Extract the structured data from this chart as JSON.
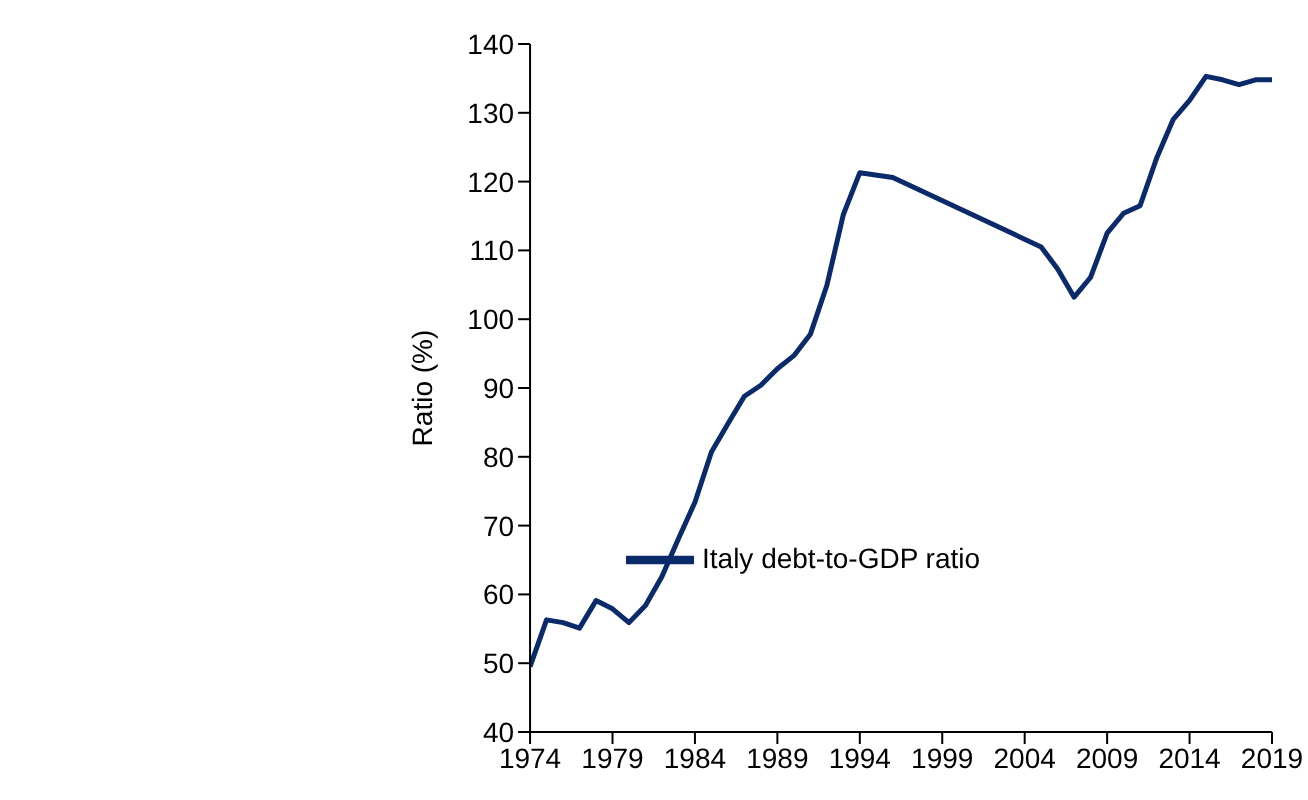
{
  "chart_data": {
    "type": "line",
    "ylabel": "Ratio (%)",
    "x": [
      1974,
      1975,
      1976,
      1977,
      1978,
      1979,
      1980,
      1981,
      1982,
      1983,
      1984,
      1985,
      1986,
      1987,
      1988,
      1989,
      1990,
      1991,
      1992,
      1993,
      1994,
      1996,
      2005,
      2006,
      2007,
      2008,
      2009,
      2010,
      2011,
      2012,
      2013,
      2014,
      2015,
      2016,
      2017,
      2018,
      2019
    ],
    "series": [
      {
        "name": "Italy debt-to-GDP ratio",
        "color": "#0a2a6a",
        "values": [
          49.5,
          56.3,
          55.9,
          55.1,
          59.1,
          57.9,
          55.9,
          58.4,
          62.6,
          68.1,
          73.4,
          80.7,
          84.8,
          88.8,
          90.4,
          92.8,
          94.7,
          97.8,
          104.9,
          115.2,
          121.3,
          120.6,
          110.5,
          107.3,
          103.2,
          106.1,
          112.5,
          115.4,
          116.5,
          123.4,
          129.0,
          131.8,
          135.3,
          134.8,
          134.1,
          134.8,
          134.8
        ]
      }
    ],
    "xlim": [
      1974,
      2019
    ],
    "xticks": [
      1974,
      1979,
      1984,
      1989,
      1994,
      1999,
      2004,
      2009,
      2014,
      2019
    ],
    "ylim": [
      40,
      140
    ],
    "yticks": [
      40,
      50,
      60,
      70,
      80,
      90,
      100,
      110,
      120,
      130,
      140
    ],
    "grid": false,
    "legend": "bottom",
    "marker": "none",
    "line_style": "solid"
  }
}
